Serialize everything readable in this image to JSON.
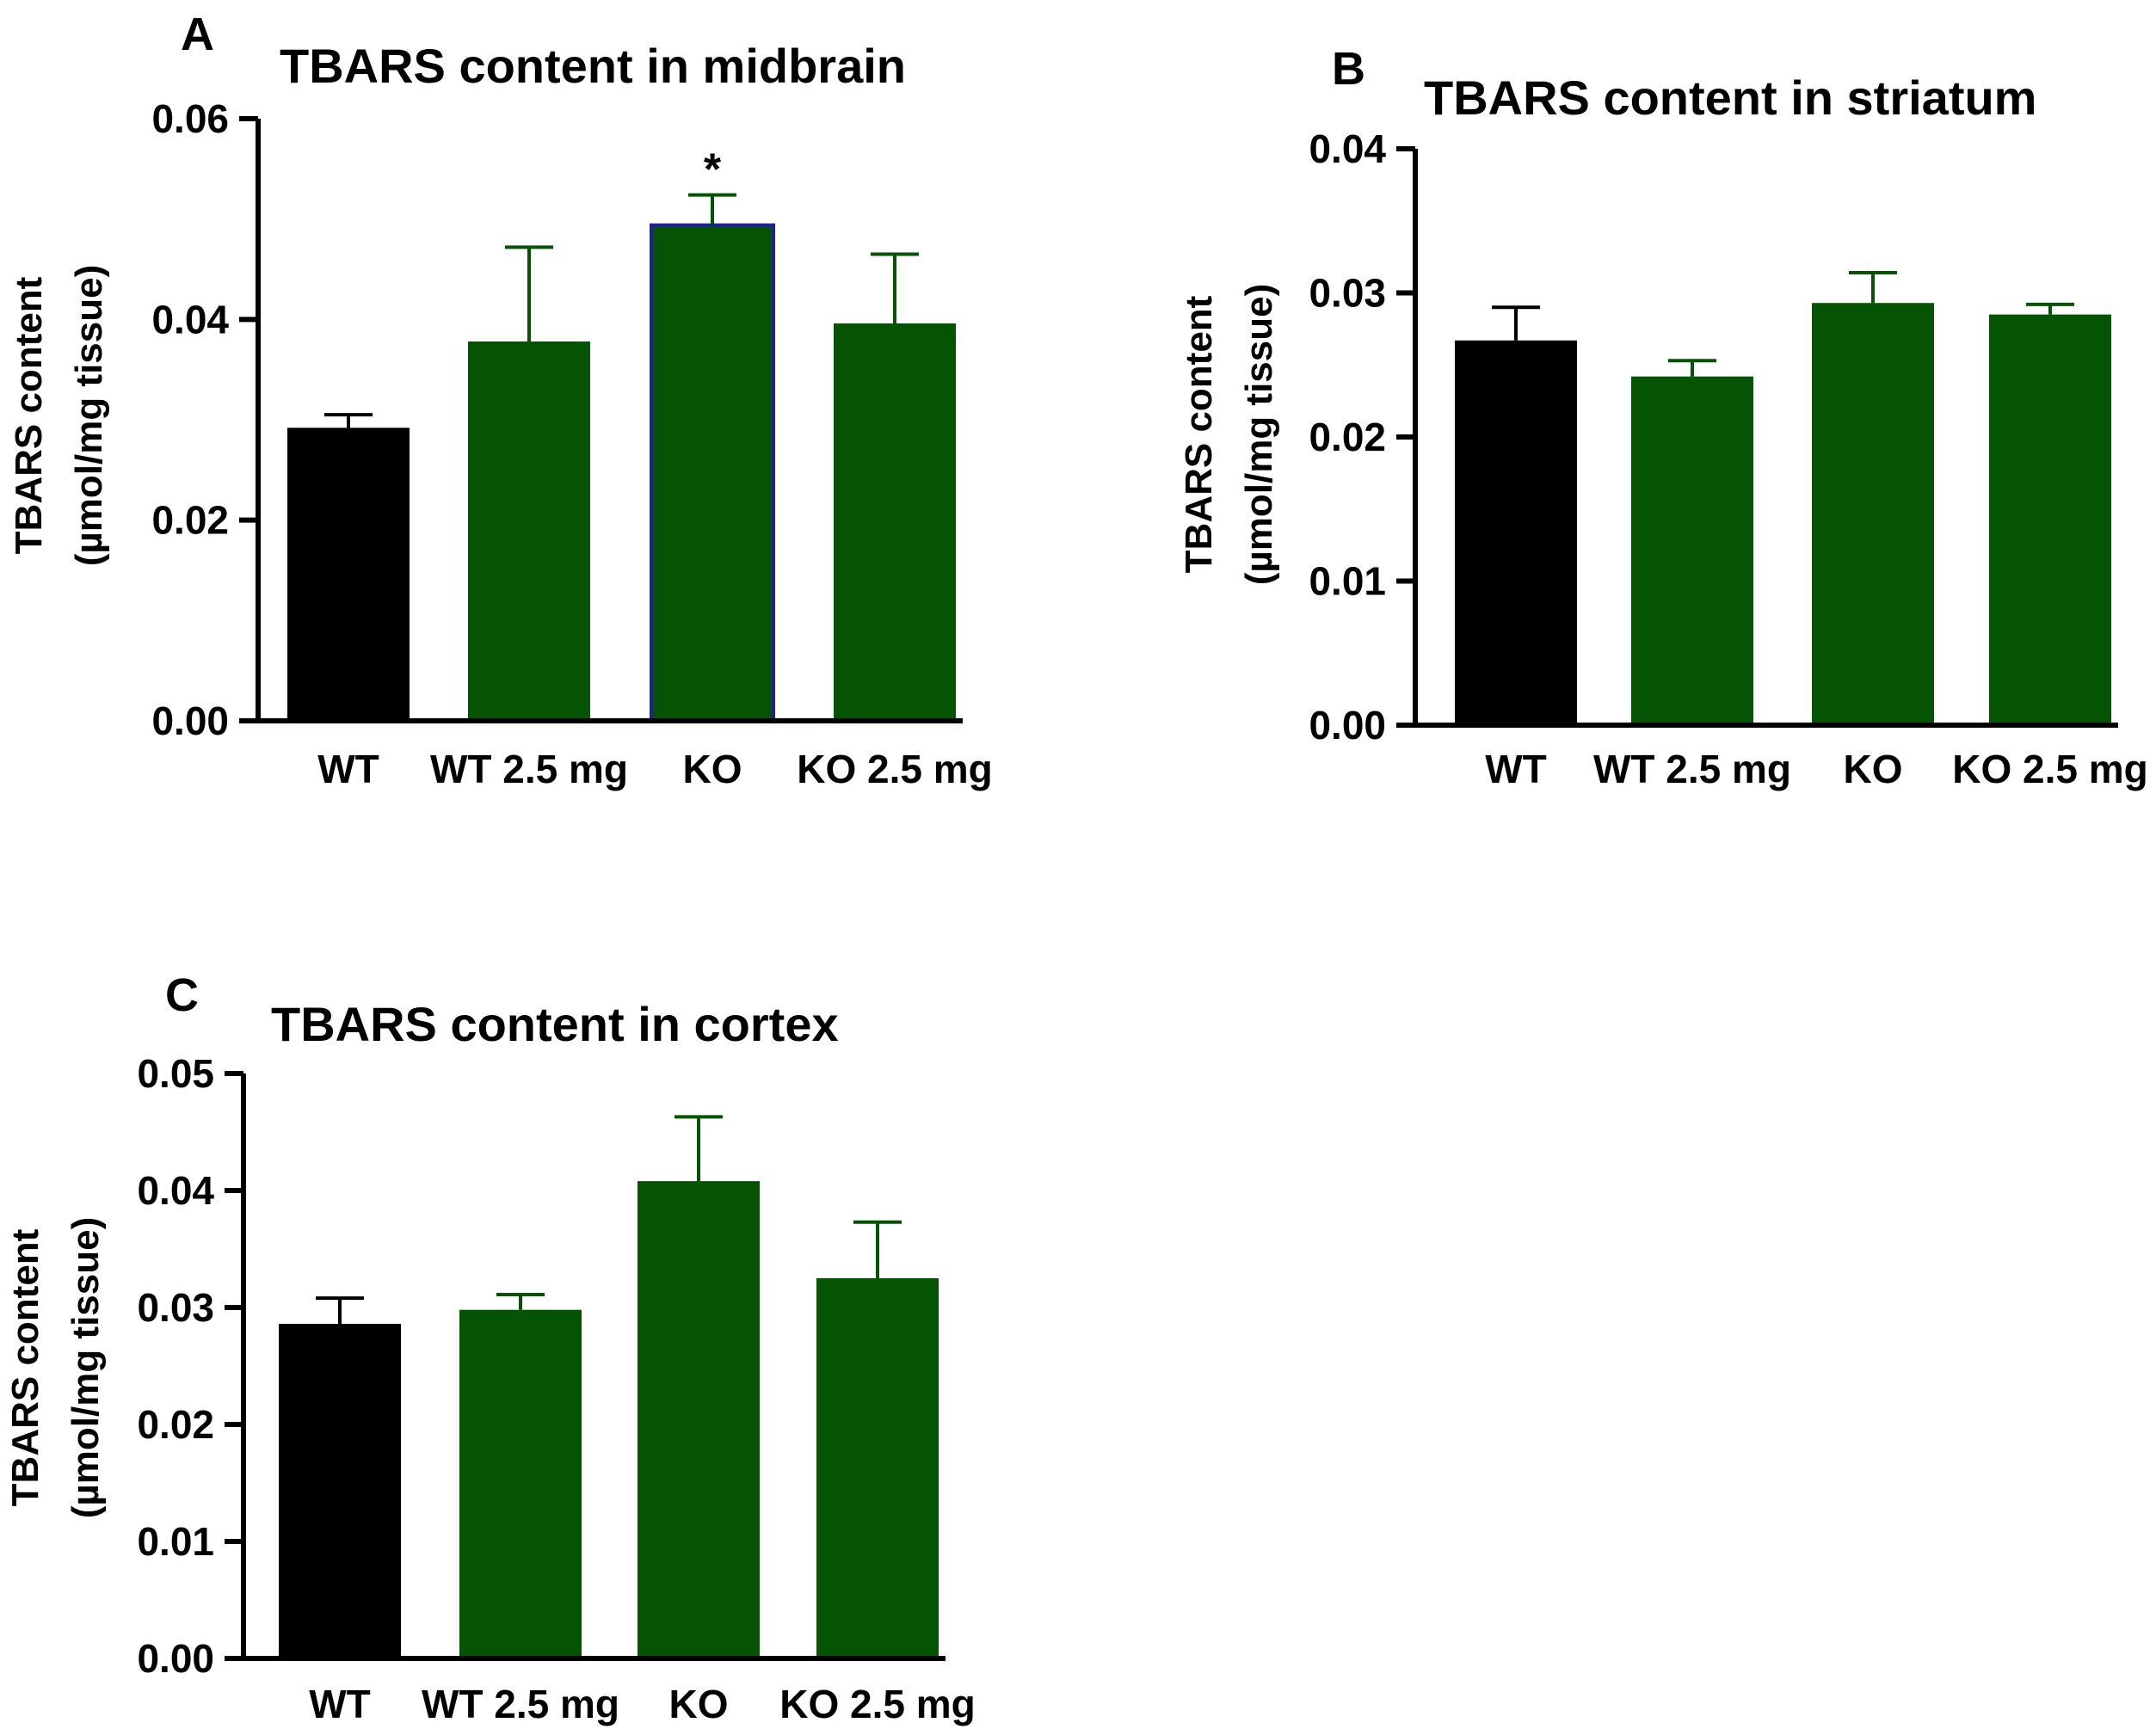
{
  "colors": {
    "black": "#000000",
    "green": "#045404",
    "highlight_border": "#1f1fa0"
  },
  "chart_data": [
    {
      "panel": "A",
      "type": "bar",
      "title": "TBARS content in midbrain",
      "ylabel": [
        "TBARS content",
        "(µmol/mg tissue)"
      ],
      "xlabel": "",
      "ylim": [
        0,
        0.06
      ],
      "yticks": [
        "0.00",
        "0.02",
        "0.04",
        "0.06"
      ],
      "categories": [
        "WT",
        "WT 2.5 mg",
        "KO",
        "KO 2.5 mg"
      ],
      "values": [
        0.0292,
        0.0378,
        0.0494,
        0.0396
      ],
      "errors": [
        0.0013,
        0.0094,
        0.003,
        0.0069
      ],
      "bar_colors": [
        "black",
        "green",
        "green",
        "green"
      ],
      "highlight": [
        false,
        false,
        true,
        false
      ],
      "annotations": [
        "",
        "",
        "*",
        ""
      ]
    },
    {
      "panel": "B",
      "type": "bar",
      "title": "TBARS content in striatum",
      "ylabel": [
        "TBARS content",
        "(µmol/mg tissue)"
      ],
      "xlabel": "",
      "ylim": [
        0,
        0.04
      ],
      "yticks": [
        "0.00",
        "0.01",
        "0.02",
        "0.03",
        "0.04"
      ],
      "categories": [
        "WT",
        "WT 2.5 mg",
        "KO",
        "KO 2.5 mg"
      ],
      "values": [
        0.0267,
        0.0242,
        0.0293,
        0.0285
      ],
      "errors": [
        0.0023,
        0.0011,
        0.0021,
        0.0007
      ],
      "bar_colors": [
        "black",
        "green",
        "green",
        "green"
      ],
      "highlight": [
        false,
        false,
        false,
        false
      ],
      "annotations": [
        "",
        "",
        "",
        ""
      ]
    },
    {
      "panel": "C",
      "type": "bar",
      "title": "TBARS content in cortex",
      "ylabel": [
        "TBARS content",
        "(µmol/mg tissue)"
      ],
      "xlabel": "",
      "ylim": [
        0,
        0.05
      ],
      "yticks": [
        "0.00",
        "0.01",
        "0.02",
        "0.03",
        "0.04",
        "0.05"
      ],
      "categories": [
        "WT",
        "WT 2.5 mg",
        "KO",
        "KO 2.5 mg"
      ],
      "values": [
        0.0286,
        0.0298,
        0.0408,
        0.0325
      ],
      "errors": [
        0.0022,
        0.0013,
        0.0055,
        0.0048
      ],
      "bar_colors": [
        "black",
        "green",
        "green",
        "green"
      ],
      "highlight": [
        false,
        false,
        false,
        false
      ],
      "annotations": [
        "",
        "",
        "",
        ""
      ]
    }
  ]
}
